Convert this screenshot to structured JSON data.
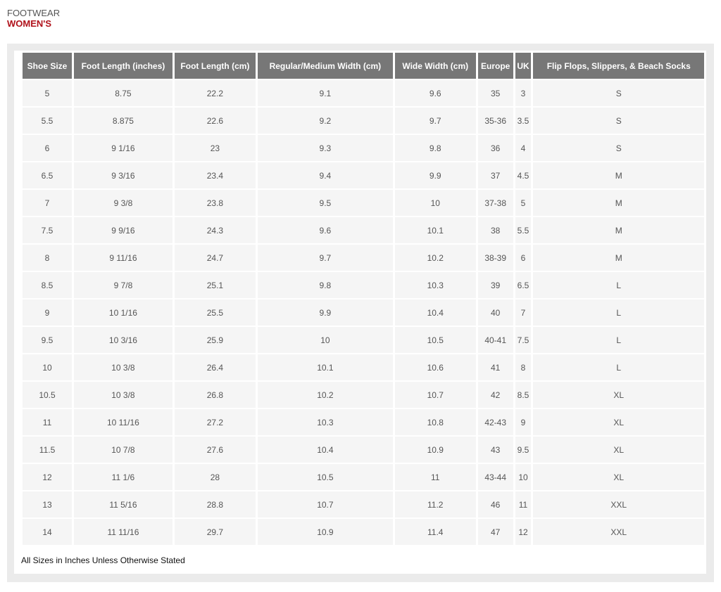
{
  "category": "FOOTWEAR",
  "subtitle": "WOMEN'S",
  "columns": [
    "Shoe Size",
    "Foot Length (inches)",
    "Foot Length (cm)",
    "Regular/Medium Width (cm)",
    "Wide Width (cm)",
    "Europe",
    "UK",
    "Flip Flops, Slippers, & Beach Socks"
  ],
  "rows": [
    [
      "5",
      "8.75",
      "22.2",
      "9.1",
      "9.6",
      "35",
      "3",
      "S"
    ],
    [
      "5.5",
      "8.875",
      "22.6",
      "9.2",
      "9.7",
      "35-36",
      "3.5",
      "S"
    ],
    [
      "6",
      "9 1/16",
      "23",
      "9.3",
      "9.8",
      "36",
      "4",
      "S"
    ],
    [
      "6.5",
      "9 3/16",
      "23.4",
      "9.4",
      "9.9",
      "37",
      "4.5",
      "M"
    ],
    [
      "7",
      "9 3/8",
      "23.8",
      "9.5",
      "10",
      "37-38",
      "5",
      "M"
    ],
    [
      "7.5",
      "9 9/16",
      "24.3",
      "9.6",
      "10.1",
      "38",
      "5.5",
      "M"
    ],
    [
      "8",
      "9 11/16",
      "24.7",
      "9.7",
      "10.2",
      "38-39",
      "6",
      "M"
    ],
    [
      "8.5",
      "9 7/8",
      "25.1",
      "9.8",
      "10.3",
      "39",
      "6.5",
      "L"
    ],
    [
      "9",
      "10 1/16",
      "25.5",
      "9.9",
      "10.4",
      "40",
      "7",
      "L"
    ],
    [
      "9.5",
      "10 3/16",
      "25.9",
      "10",
      "10.5",
      "40-41",
      "7.5",
      "L"
    ],
    [
      "10",
      "10 3/8",
      "26.4",
      "10.1",
      "10.6",
      "41",
      "8",
      "L"
    ],
    [
      "10.5",
      "10 3/8",
      "26.8",
      "10.2",
      "10.7",
      "42",
      "8.5",
      "XL"
    ],
    [
      "11",
      "10 11/16",
      "27.2",
      "10.3",
      "10.8",
      "42-43",
      "9",
      "XL"
    ],
    [
      "11.5",
      "10 7/8",
      "27.6",
      "10.4",
      "10.9",
      "43",
      "9.5",
      "XL"
    ],
    [
      "12",
      "11 1/6",
      "28",
      "10.5",
      "11",
      "43-44",
      "10",
      "XL"
    ],
    [
      "13",
      "11 5/16",
      "28.8",
      "10.7",
      "11.2",
      "46",
      "11",
      "XXL"
    ],
    [
      "14",
      "11 11/16",
      "29.7",
      "10.9",
      "11.4",
      "47",
      "12",
      "XXL"
    ]
  ],
  "note": "All Sizes in Inches Unless Otherwise Stated"
}
